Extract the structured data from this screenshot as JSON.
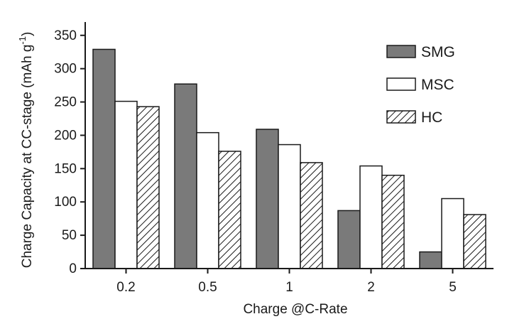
{
  "colors": {
    "background": "#ffffff",
    "axis": "#1a1a1a",
    "smg_fill": "#7a7a7a",
    "msc_fill": "#ffffff",
    "hc_hatch": "#1a1a1a"
  },
  "chart_data": {
    "type": "bar",
    "title": "",
    "xlabel": "Charge @C-Rate",
    "ylabel_main": "Charge Capacity at CC-stage (mAh g",
    "ylabel_sup": "-1",
    "ylabel_close": ")",
    "categories": [
      "0.2",
      "0.5",
      "1",
      "2",
      "5"
    ],
    "ylim": [
      0,
      370
    ],
    "yticks": [
      "0",
      "50",
      "100",
      "150",
      "200",
      "250",
      "300",
      "350"
    ],
    "ytick_values": [
      0,
      50,
      100,
      150,
      200,
      250,
      300,
      350
    ],
    "grid": false,
    "legend_position": "top-right",
    "series": [
      {
        "name": "SMG",
        "fill": "solid-gray",
        "values": [
          329,
          277,
          209,
          87,
          25
        ]
      },
      {
        "name": "MSC",
        "fill": "white",
        "values": [
          251,
          204,
          186,
          154,
          105
        ]
      },
      {
        "name": "HC",
        "fill": "hatched",
        "values": [
          243,
          176,
          159,
          140,
          81
        ]
      }
    ]
  }
}
